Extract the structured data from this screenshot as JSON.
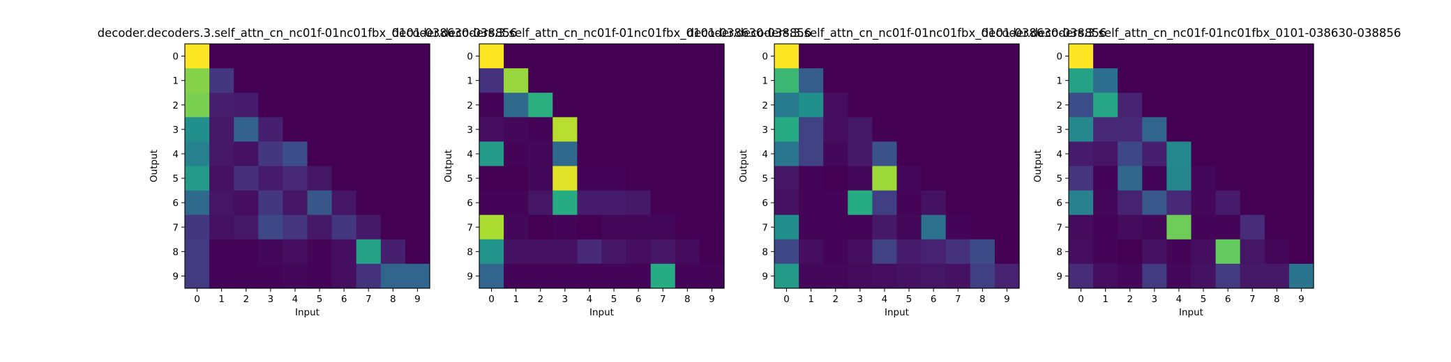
{
  "chart_data": [
    {
      "type": "heatmap",
      "title": "decoder.decoders.3.self_attn_cn_nc01f-01nc01fbx_0101-038630-038856",
      "xlabel": "Input",
      "ylabel": "Output",
      "x_ticks": [
        "0",
        "1",
        "2",
        "3",
        "4",
        "5",
        "6",
        "7",
        "8",
        "9"
      ],
      "y_ticks": [
        "0",
        "1",
        "2",
        "3",
        "4",
        "5",
        "6",
        "7",
        "8",
        "9"
      ],
      "colormap": "viridis",
      "vmin": 0,
      "vmax": 1,
      "values": [
        [
          1.0,
          0,
          0,
          0,
          0,
          0,
          0,
          0,
          0,
          0
        ],
        [
          0.82,
          0.17,
          0,
          0,
          0,
          0,
          0,
          0,
          0,
          0
        ],
        [
          0.8,
          0.09,
          0.08,
          0,
          0,
          0,
          0,
          0,
          0,
          0
        ],
        [
          0.5,
          0.07,
          0.32,
          0.09,
          0,
          0,
          0,
          0,
          0,
          0
        ],
        [
          0.45,
          0.07,
          0.05,
          0.17,
          0.24,
          0,
          0,
          0,
          0,
          0
        ],
        [
          0.55,
          0.05,
          0.14,
          0.08,
          0.12,
          0.06,
          0,
          0,
          0,
          0
        ],
        [
          0.35,
          0.06,
          0.04,
          0.17,
          0.06,
          0.27,
          0.06,
          0,
          0,
          0
        ],
        [
          0.17,
          0.05,
          0.07,
          0.22,
          0.16,
          0.07,
          0.17,
          0.07,
          0,
          0
        ],
        [
          0.18,
          0.01,
          0.01,
          0.02,
          0.04,
          0.01,
          0.04,
          0.58,
          0.09,
          0
        ],
        [
          0.18,
          0.01,
          0.01,
          0.01,
          0.02,
          0.01,
          0.04,
          0.15,
          0.33,
          0.33
        ]
      ]
    },
    {
      "type": "heatmap",
      "title": "decoder.decoders.3.self_attn_cn_nc01f-01nc01fbx_0101-038630-038856",
      "xlabel": "Input",
      "ylabel": "Output",
      "x_ticks": [
        "0",
        "1",
        "2",
        "3",
        "4",
        "5",
        "6",
        "7",
        "8",
        "9"
      ],
      "y_ticks": [
        "0",
        "1",
        "2",
        "3",
        "4",
        "5",
        "6",
        "7",
        "8",
        "9"
      ],
      "colormap": "viridis",
      "vmin": 0,
      "vmax": 1,
      "values": [
        [
          1.0,
          0,
          0,
          0,
          0,
          0,
          0,
          0,
          0,
          0
        ],
        [
          0.15,
          0.85,
          0,
          0,
          0,
          0,
          0,
          0,
          0,
          0
        ],
        [
          0.01,
          0.35,
          0.64,
          0,
          0,
          0,
          0,
          0,
          0,
          0
        ],
        [
          0.04,
          0.02,
          0.01,
          0.9,
          0,
          0,
          0,
          0,
          0,
          0
        ],
        [
          0.55,
          0.01,
          0.02,
          0.35,
          0,
          0,
          0,
          0,
          0,
          0
        ],
        [
          0.0,
          0.0,
          0.02,
          0.96,
          0.01,
          0.01,
          0,
          0,
          0,
          0
        ],
        [
          0.01,
          0.01,
          0.06,
          0.62,
          0.08,
          0.08,
          0.07,
          0,
          0,
          0
        ],
        [
          0.88,
          0.02,
          0.0,
          0.01,
          0.0,
          0.02,
          0.02,
          0.02,
          0,
          0
        ],
        [
          0.52,
          0.05,
          0.05,
          0.05,
          0.12,
          0.06,
          0.04,
          0.06,
          0.03,
          0
        ],
        [
          0.33,
          0.01,
          0.01,
          0.01,
          0.01,
          0.01,
          0.01,
          0.62,
          0.01,
          0.01
        ]
      ]
    },
    {
      "type": "heatmap",
      "title": "decoder.decoders.3.self_attn_cn_nc01f-01nc01fbx_0101-038630-038856",
      "xlabel": "Input",
      "ylabel": "Output",
      "x_ticks": [
        "0",
        "1",
        "2",
        "3",
        "4",
        "5",
        "6",
        "7",
        "8",
        "9"
      ],
      "y_ticks": [
        "0",
        "1",
        "2",
        "3",
        "4",
        "5",
        "6",
        "7",
        "8",
        "9"
      ],
      "colormap": "viridis",
      "vmin": 0,
      "vmax": 1,
      "values": [
        [
          1.0,
          0,
          0,
          0,
          0,
          0,
          0,
          0,
          0,
          0
        ],
        [
          0.68,
          0.3,
          0,
          0,
          0,
          0,
          0,
          0,
          0,
          0
        ],
        [
          0.42,
          0.5,
          0.04,
          0,
          0,
          0,
          0,
          0,
          0,
          0
        ],
        [
          0.62,
          0.2,
          0.04,
          0.07,
          0,
          0,
          0,
          0,
          0,
          0
        ],
        [
          0.4,
          0.2,
          0.02,
          0.07,
          0.26,
          0,
          0,
          0,
          0,
          0
        ],
        [
          0.06,
          0.01,
          0.0,
          0.02,
          0.86,
          0.02,
          0,
          0,
          0,
          0
        ],
        [
          0.05,
          0.01,
          0.01,
          0.62,
          0.19,
          0.01,
          0.05,
          0,
          0,
          0
        ],
        [
          0.5,
          0.01,
          0.01,
          0.01,
          0.07,
          0.02,
          0.38,
          0.01,
          0,
          0
        ],
        [
          0.22,
          0.04,
          0.01,
          0.04,
          0.2,
          0.08,
          0.1,
          0.15,
          0.23,
          0
        ],
        [
          0.55,
          0.02,
          0.02,
          0.03,
          0.04,
          0.05,
          0.06,
          0.05,
          0.19,
          0.1
        ]
      ]
    },
    {
      "type": "heatmap",
      "title": "decoder.decoders.3.self_attn_cn_nc01f-01nc01fbx_0101-038630-038856",
      "xlabel": "Input",
      "ylabel": "Output",
      "x_ticks": [
        "0",
        "1",
        "2",
        "3",
        "4",
        "5",
        "6",
        "7",
        "8",
        "9"
      ],
      "y_ticks": [
        "0",
        "1",
        "2",
        "3",
        "4",
        "5",
        "6",
        "7",
        "8",
        "9"
      ],
      "colormap": "viridis",
      "vmin": 0,
      "vmax": 1,
      "values": [
        [
          1.0,
          0,
          0,
          0,
          0,
          0,
          0,
          0,
          0,
          0
        ],
        [
          0.58,
          0.37,
          0,
          0,
          0,
          0,
          0,
          0,
          0,
          0
        ],
        [
          0.24,
          0.6,
          0.1,
          0,
          0,
          0,
          0,
          0,
          0,
          0
        ],
        [
          0.47,
          0.12,
          0.12,
          0.33,
          0,
          0,
          0,
          0,
          0,
          0
        ],
        [
          0.08,
          0.06,
          0.22,
          0.09,
          0.47,
          0,
          0,
          0,
          0,
          0
        ],
        [
          0.16,
          0.01,
          0.34,
          0.01,
          0.46,
          0.02,
          0,
          0,
          0,
          0
        ],
        [
          0.44,
          0.02,
          0.1,
          0.28,
          0.12,
          0.02,
          0.08,
          0,
          0,
          0
        ],
        [
          0.03,
          0.01,
          0.03,
          0.02,
          0.78,
          0.01,
          0.01,
          0.13,
          0,
          0
        ],
        [
          0.04,
          0.01,
          0.0,
          0.05,
          0.01,
          0.04,
          0.76,
          0.06,
          0.02,
          0
        ],
        [
          0.13,
          0.04,
          0.02,
          0.18,
          0.02,
          0.05,
          0.18,
          0.07,
          0.07,
          0.39
        ]
      ]
    }
  ]
}
